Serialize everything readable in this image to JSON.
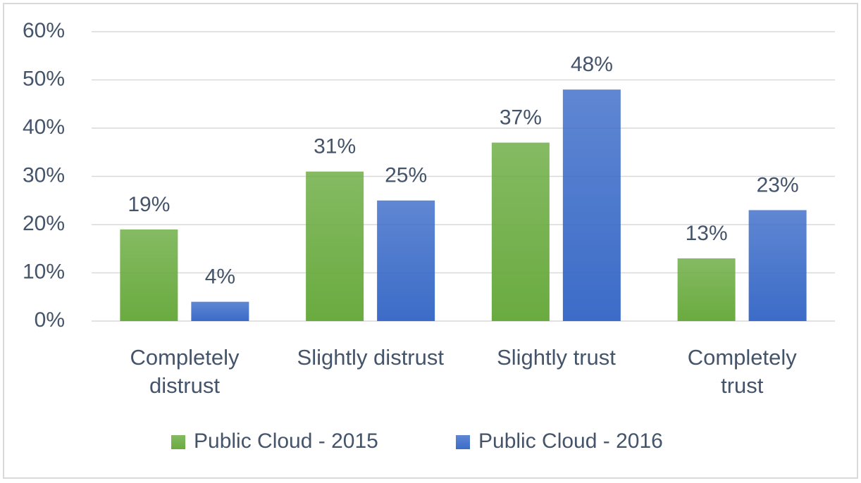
{
  "chart_data": {
    "type": "bar",
    "categories": [
      "Completely\ndistrust",
      "Slightly distrust",
      "Slightly trust",
      "Completely\ntrust"
    ],
    "series": [
      {
        "name": "Public Cloud - 2015",
        "color": "#6aab40",
        "values": [
          19,
          31,
          37,
          13
        ],
        "value_labels": [
          "19%",
          "31%",
          "37%",
          "13%"
        ]
      },
      {
        "name": "Public Cloud - 2016",
        "color": "#3c6cc8",
        "values": [
          4,
          25,
          48,
          23
        ],
        "value_labels": [
          "4%",
          "25%",
          "48%",
          "23%"
        ]
      }
    ],
    "ylim": [
      0,
      60
    ],
    "yticks": [
      {
        "value": 0,
        "label": "0%"
      },
      {
        "value": 10,
        "label": "10%"
      },
      {
        "value": 20,
        "label": "20%"
      },
      {
        "value": 30,
        "label": "30%"
      },
      {
        "value": 40,
        "label": "40%"
      },
      {
        "value": 50,
        "label": "50%"
      },
      {
        "value": 60,
        "label": "60%"
      }
    ],
    "grid": true,
    "legend": "bottom"
  }
}
